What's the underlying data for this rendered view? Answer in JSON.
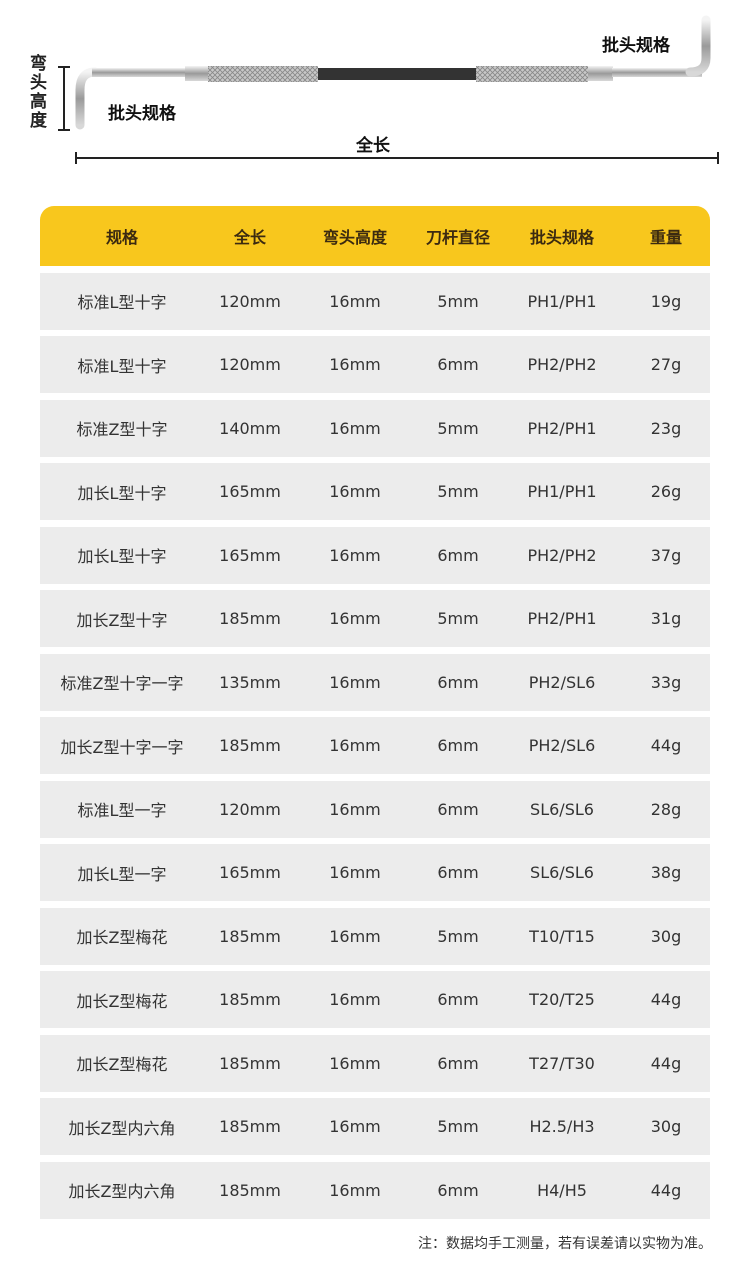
{
  "diagram": {
    "bit_spec_right": "批头规格",
    "bit_spec_left": "批头规格",
    "bend_height": "弯头高度",
    "total_length": "全长"
  },
  "table": {
    "headers": [
      "规格",
      "全长",
      "弯头高度",
      "刀杆直径",
      "批头规格",
      "重量"
    ],
    "rows": [
      [
        "标准L型十字",
        "120mm",
        "16mm",
        "5mm",
        "PH1/PH1",
        "19g"
      ],
      [
        "标准L型十字",
        "120mm",
        "16mm",
        "6mm",
        "PH2/PH2",
        "27g"
      ],
      [
        "标准Z型十字",
        "140mm",
        "16mm",
        "5mm",
        "PH2/PH1",
        "23g"
      ],
      [
        "加长L型十字",
        "165mm",
        "16mm",
        "5mm",
        "PH1/PH1",
        "26g"
      ],
      [
        "加长L型十字",
        "165mm",
        "16mm",
        "6mm",
        "PH2/PH2",
        "37g"
      ],
      [
        "加长Z型十字",
        "185mm",
        "16mm",
        "5mm",
        "PH2/PH1",
        "31g"
      ],
      [
        "标准Z型十字一字",
        "135mm",
        "16mm",
        "6mm",
        "PH2/SL6",
        "33g"
      ],
      [
        "加长Z型十字一字",
        "185mm",
        "16mm",
        "6mm",
        "PH2/SL6",
        "44g"
      ],
      [
        "标准L型一字",
        "120mm",
        "16mm",
        "6mm",
        "SL6/SL6",
        "28g"
      ],
      [
        "加长L型一字",
        "165mm",
        "16mm",
        "6mm",
        "SL6/SL6",
        "38g"
      ],
      [
        "加长Z型梅花",
        "185mm",
        "16mm",
        "5mm",
        "T10/T15",
        "30g"
      ],
      [
        "加长Z型梅花",
        "185mm",
        "16mm",
        "6mm",
        "T20/T25",
        "44g"
      ],
      [
        "加长Z型梅花",
        "185mm",
        "16mm",
        "6mm",
        "T27/T30",
        "44g"
      ],
      [
        "加长Z型内六角",
        "185mm",
        "16mm",
        "5mm",
        "H2.5/H3",
        "30g"
      ],
      [
        "加长Z型内六角",
        "185mm",
        "16mm",
        "6mm",
        "H4/H5",
        "44g"
      ]
    ]
  },
  "note": "注：数据均手工测量，若有误差请以实物为准。",
  "colors": {
    "header_bg": "#f8c71d",
    "row_bg": "#ececec"
  }
}
